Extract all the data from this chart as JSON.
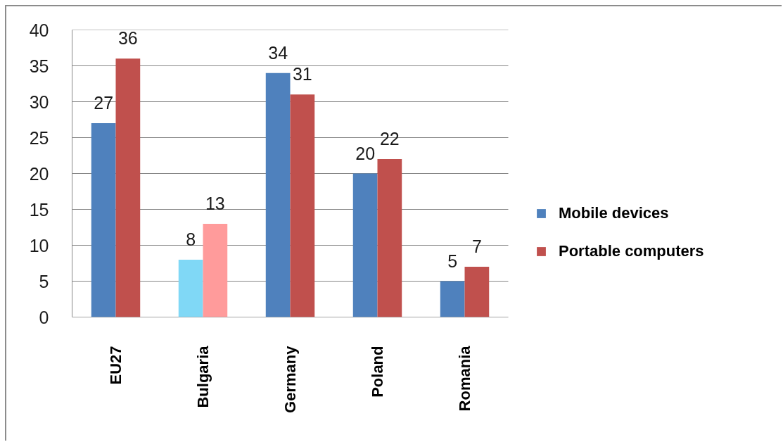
{
  "chart_data": {
    "type": "bar",
    "categories": [
      "EU27",
      "Bulgaria",
      "Germany",
      "Poland",
      "Romania"
    ],
    "series": [
      {
        "name": "Mobile devices",
        "color": "#4f81bd",
        "colors": [
          "#4f81bd",
          "#80d8f6",
          "#4f81bd",
          "#4f81bd",
          "#4f81bd"
        ],
        "values": [
          27,
          8,
          34,
          20,
          5
        ]
      },
      {
        "name": "Portable computers",
        "color": "#c0504d",
        "colors": [
          "#c0504d",
          "#ff9b9b",
          "#c0504d",
          "#c0504d",
          "#c0504d"
        ],
        "values": [
          36,
          13,
          31,
          22,
          7
        ]
      }
    ],
    "ylim": [
      0,
      40
    ],
    "yticks": [
      0,
      5,
      10,
      15,
      20,
      25,
      30,
      35,
      40
    ],
    "grid": "y",
    "legend": "right",
    "data_labels": true
  }
}
